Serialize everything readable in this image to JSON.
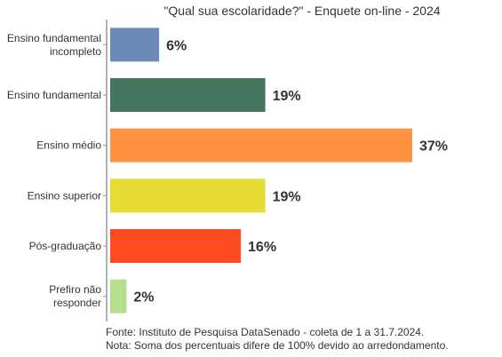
{
  "chart_data": {
    "type": "bar",
    "orientation": "horizontal",
    "title": "\"Qual sua escolaridade?\" - Enquete on-line - 2024",
    "categories": [
      "Ensino fundamental incompleto",
      "Ensino fundamental",
      "Ensino médio",
      "Ensino superior",
      "Pós-graduação",
      "Prefiro não responder"
    ],
    "category_lines": [
      [
        "Ensino fundamental",
        "incompleto"
      ],
      [
        "Ensino fundamental"
      ],
      [
        "Ensino médio"
      ],
      [
        "Ensino superior"
      ],
      [
        "Pós-graduação"
      ],
      [
        "Prefiro não",
        "responder"
      ]
    ],
    "values": [
      6,
      19,
      37,
      19,
      16,
      2
    ],
    "value_labels": [
      "6%",
      "19%",
      "37%",
      "19%",
      "16%",
      "2%"
    ],
    "colors": [
      "#6a8bb5",
      "#44765f",
      "#ff9342",
      "#e6dc34",
      "#ff4b22",
      "#b5e08e"
    ],
    "xlim": [
      0,
      37
    ],
    "xlabel": "",
    "ylabel": "",
    "grid": false,
    "legend": "none"
  },
  "footnote": {
    "source": "Fonte: Instituto de Pesquisa DataSenado - coleta de 1 a 31.7.2024.",
    "note": "Nota: Soma dos percentuais difere de 100% devido ao arredondamento."
  }
}
